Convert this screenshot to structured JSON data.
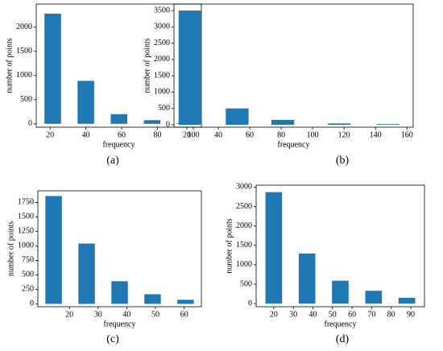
{
  "chart_data": [
    {
      "type": "bar",
      "label": "(a)",
      "xlabel": "frequency",
      "ylabel": "number of points",
      "color": "#1f77b4",
      "x": [
        21.5,
        40,
        58.5,
        77,
        95.5
      ],
      "values": [
        2280,
        890,
        200,
        75,
        15
      ],
      "xlim": [
        12.3,
        104.5
      ],
      "xticks": [
        20,
        40,
        60,
        80,
        100
      ],
      "ylim": [
        -70,
        2480
      ],
      "yticks": [
        0,
        500,
        1000,
        1500,
        2000
      ]
    },
    {
      "type": "bar",
      "label": "(b)",
      "xlabel": "frequency",
      "ylabel": "number of points",
      "color": "#1f77b4",
      "x": [
        22,
        52,
        81,
        117,
        148
      ],
      "values": [
        3500,
        500,
        150,
        40,
        20
      ],
      "xlim": [
        11.8,
        164
      ],
      "xticks": [
        20,
        40,
        60,
        80,
        100,
        120,
        140,
        160
      ],
      "ylim": [
        -75,
        3700
      ],
      "yticks": [
        0,
        500,
        1000,
        1500,
        2000,
        2500,
        3000,
        3500
      ]
    },
    {
      "type": "bar",
      "label": "(c)",
      "xlabel": "frequency",
      "ylabel": "number of points",
      "color": "#1f77b4",
      "x": [
        14.5,
        26,
        37.5,
        49,
        60.5
      ],
      "values": [
        1860,
        1040,
        390,
        165,
        70
      ],
      "xlim": [
        9,
        66
      ],
      "xticks": [
        20,
        30,
        40,
        50,
        60
      ],
      "ylim": [
        -50,
        1950
      ],
      "yticks": [
        0,
        250,
        500,
        750,
        1000,
        1250,
        1500,
        1750
      ]
    },
    {
      "type": "bar",
      "label": "(d)",
      "xlabel": "frequency",
      "ylabel": "number of points",
      "color": "#1f77b4",
      "x": [
        20,
        37,
        54,
        71,
        88
      ],
      "values": [
        2870,
        1290,
        590,
        330,
        150
      ],
      "xlim": [
        11,
        97
      ],
      "xticks": [
        20,
        30,
        40,
        50,
        60,
        70,
        80,
        90
      ],
      "ylim": [
        -80,
        3050
      ],
      "yticks": [
        0,
        500,
        1000,
        1500,
        2000,
        2500,
        3000
      ]
    }
  ]
}
